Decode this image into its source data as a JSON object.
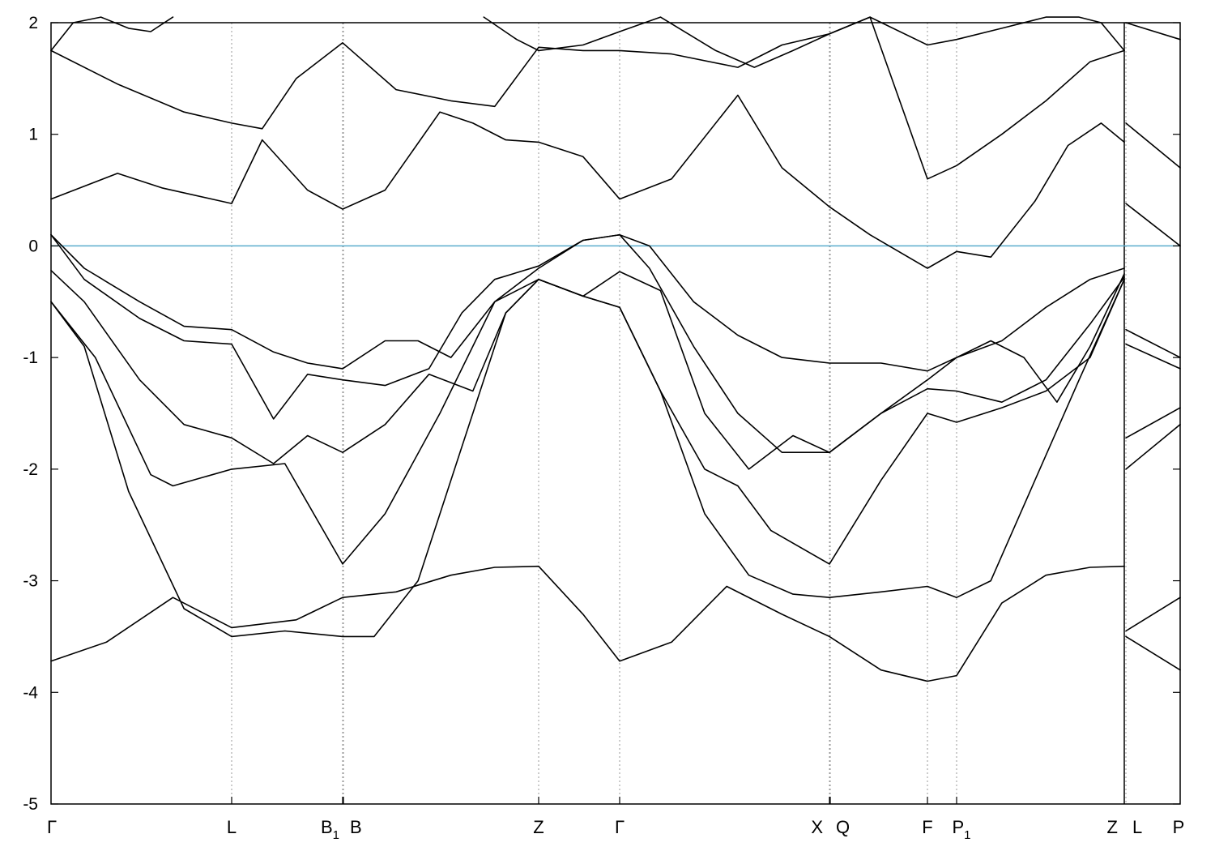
{
  "chart_data": {
    "type": "line",
    "title": "",
    "xlabel": "",
    "ylabel": "",
    "ylim": [
      -5,
      2
    ],
    "yticks": [
      2,
      1,
      0,
      -1,
      -2,
      -3,
      -4,
      -5
    ],
    "ytick_labels": [
      "2",
      "1",
      "0",
      "-1",
      "-2",
      "-3",
      "-4",
      "-5"
    ],
    "xlim": [
      0,
      9.72
    ],
    "kpoints": [
      {
        "x": 0.0,
        "label": "Γ",
        "sub": ""
      },
      {
        "x": 1.63,
        "label": "L",
        "sub": ""
      },
      {
        "x": 2.61,
        "label": "B",
        "sub": "1"
      },
      {
        "x": 2.62,
        "label": "B",
        "sub": ""
      },
      {
        "x": 4.4,
        "label": "Z",
        "sub": ""
      },
      {
        "x": 5.13,
        "label": "Γ",
        "sub": ""
      },
      {
        "x": 7.03,
        "label": "X",
        "sub": ""
      },
      {
        "x": 7.04,
        "label": "Q",
        "sub": ""
      },
      {
        "x": 7.92,
        "label": "F",
        "sub": ""
      },
      {
        "x": 8.19,
        "label": "P",
        "sub": "1"
      },
      {
        "x": 9.71,
        "label": "Z",
        "sub": ""
      },
      {
        "x": 9.72,
        "label": "L",
        "sub": ""
      },
      {
        "x": 10.2,
        "label": "P",
        "sub": ""
      }
    ],
    "fermi_level": 0,
    "grid": "vertical dotted at k-points",
    "legend": "none",
    "colors": {
      "bands": "#000000",
      "fermi": "#5aaccd",
      "grid": "#999999",
      "axes": "#000000"
    },
    "series": [
      {
        "x": [
          0,
          0.5,
          1.1,
          1.63,
          2.2,
          2.61,
          3.1,
          3.6,
          4.0,
          4.4,
          4.8,
          5.13,
          5.6,
          6.1,
          6.6,
          7.03,
          7.5,
          7.92,
          8.19,
          8.6,
          9.0,
          9.4,
          9.71,
          9.72,
          10.2
        ],
        "values": [
          -3.72,
          -3.55,
          -3.15,
          -3.42,
          -3.35,
          -3.15,
          -3.1,
          -2.95,
          -2.88,
          -2.87,
          -3.3,
          -3.72,
          -3.55,
          -3.05,
          -3.3,
          -3.5,
          -3.8,
          -3.9,
          -3.85,
          -3.2,
          -2.95,
          -2.88,
          -2.87,
          -3.45,
          -3.15
        ]
      },
      {
        "x": [
          0,
          0.3,
          0.7,
          1.2,
          1.63,
          2.1,
          2.61,
          2.9,
          3.3,
          3.7,
          4.1,
          4.4,
          4.8,
          5.13,
          5.5,
          5.9,
          6.3,
          6.7,
          7.03,
          7.5,
          7.92,
          8.19,
          8.5,
          8.9,
          9.3,
          9.71,
          9.72,
          10.2
        ],
        "values": [
          -0.5,
          -0.9,
          -2.2,
          -3.25,
          -3.5,
          -3.45,
          -3.5,
          -3.5,
          -3.0,
          -1.8,
          -0.6,
          -0.3,
          -0.45,
          -0.55,
          -1.3,
          -2.4,
          -2.95,
          -3.12,
          -3.15,
          -3.1,
          -3.05,
          -3.15,
          -3.0,
          -2.1,
          -1.2,
          -0.3,
          -3.5,
          -3.8
        ]
      },
      {
        "x": [
          0,
          0.4,
          0.9,
          1.1,
          1.63,
          2.1,
          2.61,
          3.0,
          3.5,
          4.0,
          4.4,
          4.8,
          5.13,
          5.5,
          5.9,
          6.2,
          6.5,
          7.03,
          7.5,
          7.92,
          8.19,
          8.6,
          9.0,
          9.4,
          9.71,
          9.72,
          10.2
        ],
        "values": [
          -0.5,
          -1.0,
          -2.05,
          -2.15,
          -2.0,
          -1.95,
          -2.85,
          -2.4,
          -1.5,
          -0.5,
          -0.3,
          -0.45,
          -0.55,
          -1.3,
          -2.0,
          -2.15,
          -2.55,
          -2.85,
          -2.1,
          -1.5,
          -1.58,
          -1.45,
          -1.3,
          -1.0,
          -0.3,
          -2.0,
          -1.6
        ]
      },
      {
        "x": [
          0,
          0.3,
          0.8,
          1.2,
          1.63,
          2.0,
          2.3,
          2.61,
          3.0,
          3.4,
          3.8,
          4.1,
          4.4,
          4.8,
          5.13,
          5.5,
          5.9,
          6.3,
          6.7,
          7.03,
          7.5,
          7.92,
          8.19,
          8.5,
          8.8,
          9.1,
          9.4,
          9.71,
          9.72,
          10.2
        ],
        "values": [
          -0.22,
          -0.5,
          -1.2,
          -1.6,
          -1.72,
          -1.95,
          -1.7,
          -1.85,
          -1.6,
          -1.15,
          -1.3,
          -0.6,
          -0.3,
          -0.45,
          -0.23,
          -0.4,
          -1.5,
          -2.0,
          -1.7,
          -1.85,
          -1.5,
          -1.2,
          -1.0,
          -0.85,
          -1.0,
          -1.4,
          -0.9,
          -0.25,
          -1.72,
          -1.45
        ]
      },
      {
        "x": [
          0,
          0.3,
          0.8,
          1.2,
          1.63,
          2.0,
          2.3,
          2.61,
          3.0,
          3.4,
          3.7,
          4.0,
          4.4,
          4.8,
          5.13,
          5.4,
          5.8,
          6.2,
          6.6,
          7.03,
          7.5,
          7.92,
          8.19,
          8.6,
          9.0,
          9.4,
          9.71,
          9.72,
          10.2
        ],
        "values": [
          0.1,
          -0.3,
          -0.65,
          -0.85,
          -0.88,
          -1.55,
          -1.15,
          -1.2,
          -1.25,
          -1.1,
          -0.6,
          -0.3,
          -0.18,
          0.05,
          0.1,
          -0.2,
          -0.9,
          -1.5,
          -1.85,
          -1.85,
          -1.5,
          -1.28,
          -1.3,
          -1.4,
          -1.2,
          -0.7,
          -0.28,
          -0.88,
          -1.1
        ]
      },
      {
        "x": [
          0,
          0.3,
          0.8,
          1.2,
          1.63,
          2.0,
          2.3,
          2.61,
          3.0,
          3.3,
          3.6,
          4.0,
          4.4,
          4.8,
          5.13,
          5.4,
          5.8,
          6.2,
          6.6,
          7.03,
          7.5,
          7.92,
          8.19,
          8.6,
          9.0,
          9.4,
          9.71,
          9.72,
          10.2
        ],
        "values": [
          0.1,
          -0.2,
          -0.5,
          -0.72,
          -0.75,
          -0.95,
          -1.05,
          -1.1,
          -0.85,
          -0.85,
          -1.0,
          -0.5,
          -0.2,
          0.05,
          0.1,
          0.0,
          -0.5,
          -0.8,
          -1.0,
          -1.05,
          -1.05,
          -1.12,
          -1.0,
          -0.85,
          -0.55,
          -0.3,
          -0.2,
          -0.75,
          -1.0
        ]
      },
      {
        "x": [
          0,
          0.6,
          1.0,
          1.63,
          1.9,
          2.3,
          2.61,
          3.0,
          3.5,
          3.8,
          4.1,
          4.4,
          4.8,
          5.13,
          5.6,
          6.2,
          6.6,
          7.03,
          7.4,
          7.92,
          8.19,
          8.5,
          8.9,
          9.2,
          9.5,
          9.71,
          9.72,
          10.2
        ],
        "values": [
          0.42,
          0.65,
          0.52,
          0.38,
          0.95,
          0.5,
          0.33,
          0.5,
          1.2,
          1.1,
          0.95,
          0.93,
          0.8,
          0.42,
          0.6,
          1.35,
          0.7,
          0.35,
          0.1,
          -0.2,
          -0.05,
          -0.1,
          0.4,
          0.9,
          1.1,
          0.93,
          0.38,
          0.0
        ]
      },
      {
        "x": [
          0,
          0.6,
          1.2,
          1.63,
          1.9,
          2.2,
          2.61,
          3.1,
          3.6,
          4.0,
          4.4,
          4.8,
          5.13,
          5.6,
          6.2,
          6.6,
          7.03,
          7.4,
          7.92,
          8.19,
          8.6,
          9.0,
          9.4,
          9.71,
          9.72,
          10.2
        ],
        "values": [
          1.75,
          1.45,
          1.2,
          1.1,
          1.05,
          1.5,
          1.82,
          1.4,
          1.3,
          1.25,
          1.78,
          1.75,
          1.75,
          1.72,
          1.6,
          1.8,
          1.9,
          2.05,
          0.6,
          0.72,
          1.0,
          1.3,
          1.65,
          1.75,
          1.1,
          0.7
        ]
      },
      {
        "x": [
          0,
          0.2,
          0.45,
          0.7,
          0.9,
          1.1
        ],
        "values": [
          1.75,
          2.0,
          2.05,
          1.95,
          1.92,
          2.05
        ]
      },
      {
        "x": [
          3.9,
          4.2,
          4.4,
          4.8,
          5.13,
          5.5,
          6.0,
          6.35,
          6.7,
          7.03,
          7.4,
          7.92,
          8.19,
          8.6,
          9.0,
          9.3,
          9.5,
          9.71,
          9.72,
          10.2
        ],
        "values": [
          2.05,
          1.85,
          1.75,
          1.8,
          1.92,
          2.05,
          1.75,
          1.6,
          1.75,
          1.9,
          2.05,
          1.8,
          1.85,
          1.95,
          2.05,
          2.05,
          2.0,
          1.75,
          2.0,
          1.85
        ]
      }
    ]
  }
}
